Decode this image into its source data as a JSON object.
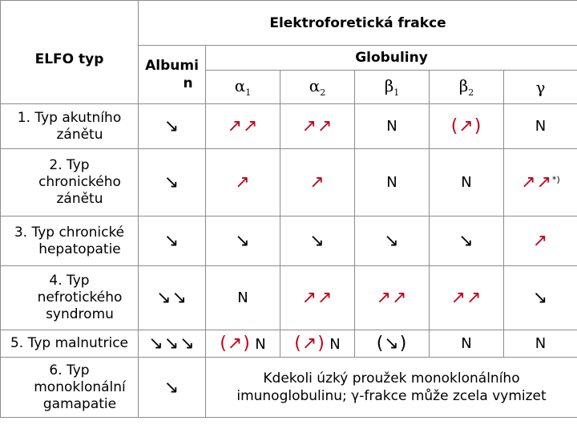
{
  "header": {
    "fraction_title": "Elektroforetická frakce",
    "type_col": "ELFO typ",
    "albumin": "Albumin",
    "globulins": "Globuliny",
    "alpha1": "α",
    "alpha1_sub": "1",
    "alpha2": "α",
    "alpha2_sub": "2",
    "beta1": "β",
    "beta1_sub": "1",
    "beta2": "β",
    "beta2_sub": "2",
    "gamma": "γ"
  },
  "symbols": {
    "up": "↗",
    "up2": "↗↗",
    "down": "↘",
    "down2": "↘↘",
    "down3": "↘↘↘",
    "up_paren": "(↗)",
    "down_paren": "(↘)",
    "normal": "N",
    "asterisk": "*)",
    "up_color": "#c0001a",
    "down_color": "#000000"
  },
  "rows": [
    {
      "label": "1. Typ akutního zánětu"
    },
    {
      "label": "2. Typ chronického zánětu"
    },
    {
      "label": "3. Typ chronické hepatopatie"
    },
    {
      "label": "4. Typ nefrotického syndromu"
    },
    {
      "label": "5. Typ malnutrice"
    },
    {
      "label": "6. Typ monoklonální gamapatie"
    }
  ],
  "labels": {
    "r1a": "1. Typ akutního",
    "r1b": "zánětu",
    "r2a": "2. Typ",
    "r2b": "chronického",
    "r2c": "zánětu",
    "r3a": "3. Typ chronické",
    "r3b": "hepatopatie",
    "r4a": "4. Typ",
    "r4b": "nefrotického",
    "r4c": "syndromu",
    "r5a": "5. Typ malnutrice",
    "r6a": "6. Typ",
    "r6b": "monoklonální",
    "r6c": "gamapatie"
  },
  "albumin_lines": {
    "a": "Albumi",
    "b": "n"
  },
  "monoclonal_note_a": "Kdekoli úzký proužek monoklonálního",
  "monoclonal_note_b": "imunoglobulinu; γ-frakce může zcela vymizet"
}
